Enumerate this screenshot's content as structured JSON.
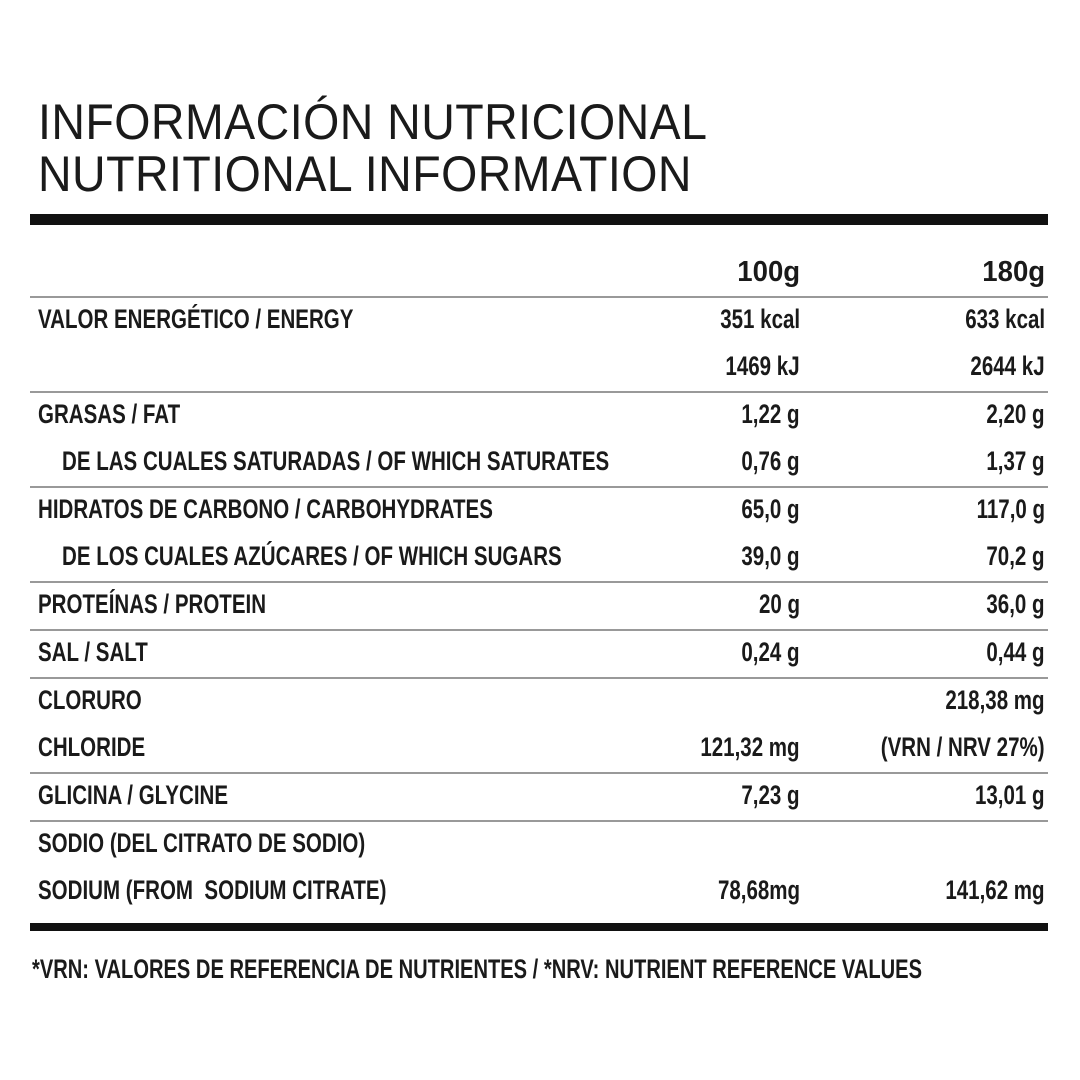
{
  "title": [
    "INFORMACIÓN NUTRICIONAL",
    "NUTRITIONAL INFORMATION"
  ],
  "table": {
    "header": {
      "c100": "100g",
      "c180": "180g"
    },
    "groups": [
      {
        "lines": [
          {
            "label": "VALOR ENERGÉTICO / ENERGY",
            "c100": "351 kcal",
            "c180": "633 kcal"
          },
          {
            "c100": "1469 kJ",
            "c180": "2644 kJ"
          }
        ]
      },
      {
        "lines": [
          {
            "label": "GRASAS / FAT",
            "c100": "1,22 g",
            "c180": "2,20 g"
          },
          {
            "label": "DE LAS CUALES SATURADAS / OF WHICH SATURATES",
            "c100": "0,76 g",
            "c180": "1,37 g",
            "indent": true
          }
        ]
      },
      {
        "lines": [
          {
            "label": "HIDRATOS DE CARBONO / CARBOHYDRATES",
            "c100": "65,0 g",
            "c180": "117,0 g"
          },
          {
            "label": "DE LOS CUALES AZÚCARES / OF WHICH SUGARS",
            "c100": "39,0 g",
            "c180": "70,2 g",
            "indent": true
          }
        ]
      },
      {
        "lines": [
          {
            "label": "PROTEÍNAS / PROTEIN",
            "c100": "20 g",
            "c180": "36,0 g"
          }
        ]
      },
      {
        "lines": [
          {
            "label": "SAL / SALT",
            "c100": "0,24 g",
            "c180": "0,44 g"
          }
        ]
      },
      {
        "lines": [
          {
            "label": "CLORURO",
            "c180": "218,38 mg"
          },
          {
            "label": "CHLORIDE",
            "c100": "121,32 mg",
            "c180": "(VRN / NRV 27%)"
          }
        ]
      },
      {
        "lines": [
          {
            "label": "GLICINA / GLYCINE",
            "c100": "7,23 g",
            "c180": "13,01 g"
          }
        ]
      },
      {
        "lines": [
          {
            "label": "SODIO (DEL CITRATO DE SODIO)"
          },
          {
            "label": "SODIUM (FROM  SODIUM CITRATE)",
            "c100": "78,68mg",
            "c180": "141,62 mg"
          }
        ]
      }
    ]
  },
  "footnote": "*VRN: VALORES DE REFERENCIA DE NUTRIENTES / *NRV: NUTRIENT REFERENCE VALUES"
}
